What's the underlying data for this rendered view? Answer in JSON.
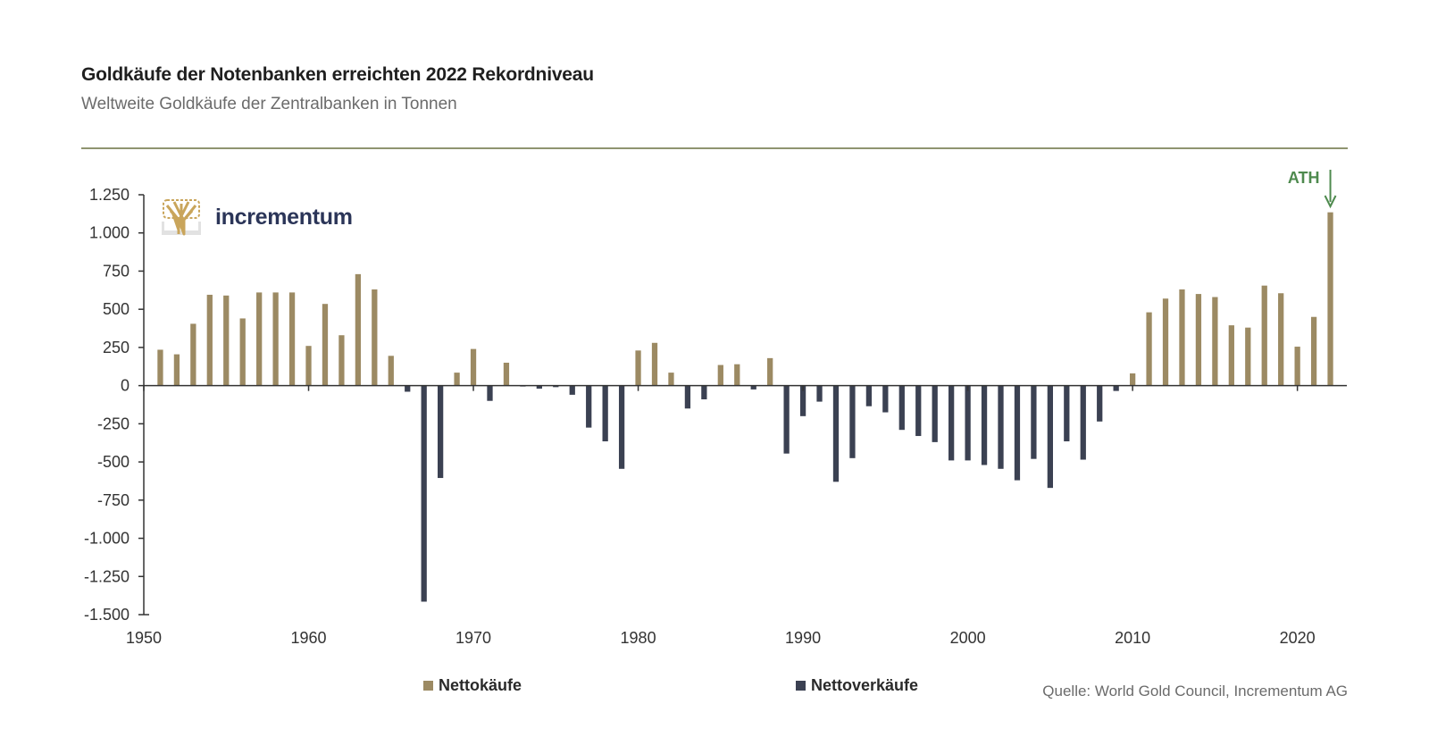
{
  "header": {
    "title": "Goldkäufe der Notenbanken erreichten 2022 Rekordniveau",
    "subtitle": "Weltweite Goldkäufe der Zentralbanken in Tonnen"
  },
  "logo": {
    "text": "incrementum",
    "icon": "tree-icon"
  },
  "legend": {
    "buy_label": "Nettokäufe",
    "sell_label": "Nettoverkäufe"
  },
  "source": "Quelle: World Gold Council, Incrementum AG",
  "colors": {
    "buy": "#9c8a63",
    "sell": "#3b4152",
    "axis": "#333333",
    "annotation": "#4e8a4e"
  },
  "chart_data": {
    "type": "bar",
    "title": "Goldkäufe der Notenbanken erreichten 2022 Rekordniveau",
    "xlabel": "",
    "ylabel": "",
    "ylim": [
      -1500,
      1250
    ],
    "yticks": [
      1250,
      1000,
      750,
      500,
      250,
      0,
      -250,
      -500,
      -750,
      -1000,
      -1250,
      -1500
    ],
    "ytick_labels": [
      "1.250",
      "1.000",
      "750",
      "500",
      "250",
      "0",
      "-250",
      "-500",
      "-750",
      "-1.000",
      "-1.250",
      "-1.500"
    ],
    "xlim": [
      1950,
      2023
    ],
    "xticks": [
      1950,
      1960,
      1970,
      1980,
      1990,
      2000,
      2010,
      2020
    ],
    "xtick_labels": [
      "1950",
      "1960",
      "1970",
      "1980",
      "1990",
      "2000",
      "2010",
      "2020"
    ],
    "grid": false,
    "legend_position": "bottom-center",
    "annotation": {
      "text": "ATH",
      "x": 2022
    },
    "x": [
      1951,
      1952,
      1953,
      1954,
      1955,
      1956,
      1957,
      1958,
      1959,
      1960,
      1961,
      1962,
      1963,
      1964,
      1965,
      1966,
      1967,
      1968,
      1969,
      1970,
      1971,
      1972,
      1973,
      1974,
      1975,
      1976,
      1977,
      1978,
      1979,
      1980,
      1981,
      1982,
      1983,
      1984,
      1985,
      1986,
      1987,
      1988,
      1989,
      1990,
      1991,
      1992,
      1993,
      1994,
      1995,
      1996,
      1997,
      1998,
      1999,
      2000,
      2001,
      2002,
      2003,
      2004,
      2005,
      2006,
      2007,
      2008,
      2009,
      2010,
      2011,
      2012,
      2013,
      2014,
      2015,
      2016,
      2017,
      2018,
      2019,
      2020,
      2021,
      2022
    ],
    "values": [
      235,
      205,
      405,
      595,
      590,
      440,
      610,
      610,
      610,
      260,
      535,
      330,
      730,
      630,
      195,
      -40,
      -1415,
      -605,
      85,
      240,
      -100,
      150,
      -5,
      -20,
      -10,
      -60,
      -275,
      -365,
      -545,
      230,
      280,
      85,
      -150,
      -90,
      135,
      140,
      -25,
      180,
      -445,
      -200,
      -105,
      -630,
      -475,
      -135,
      -175,
      -290,
      -330,
      -370,
      -490,
      -490,
      -520,
      -545,
      -620,
      -480,
      -670,
      -365,
      -485,
      -235,
      -35,
      80,
      480,
      570,
      630,
      600,
      580,
      395,
      380,
      655,
      605,
      255,
      450,
      1135
    ]
  }
}
